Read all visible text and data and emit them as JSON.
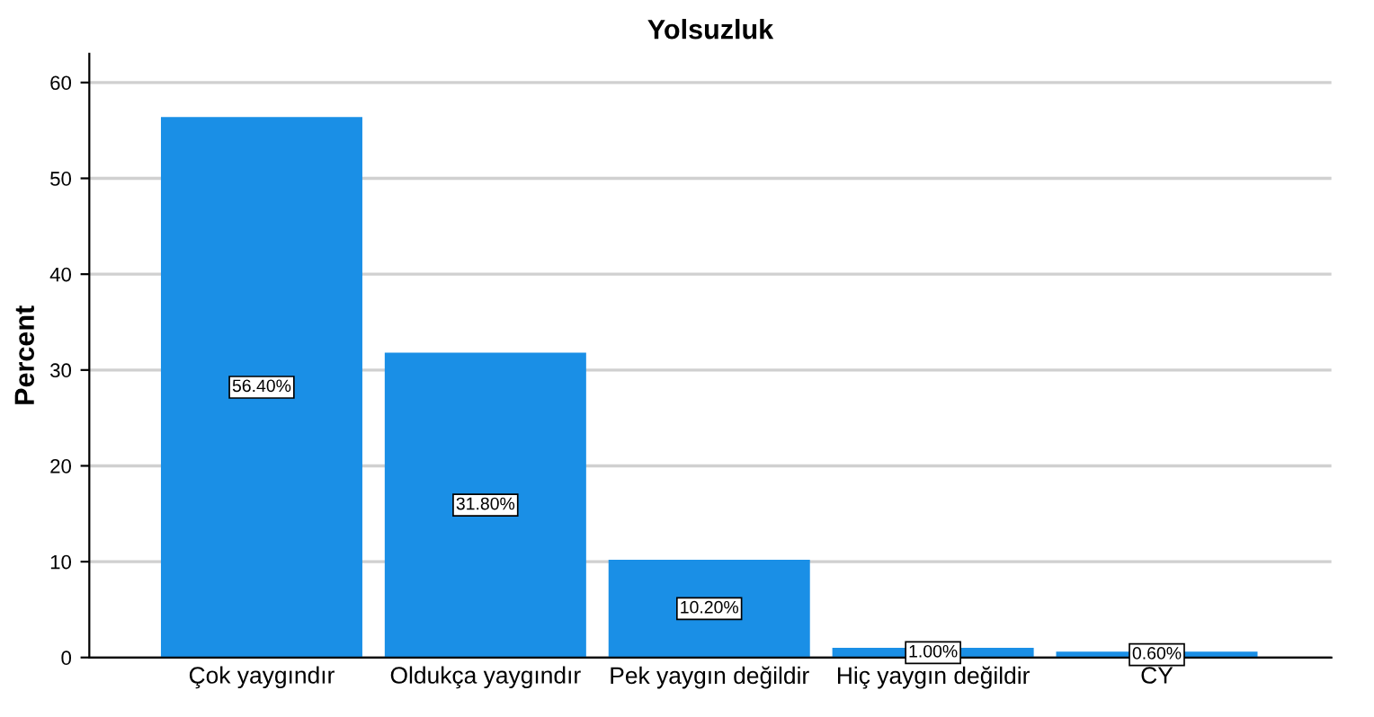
{
  "chart_data": {
    "type": "bar",
    "title": "Yolsuzluk",
    "ylabel": "Percent",
    "categories": [
      "Çok yaygındır",
      "Oldukça yaygındır",
      "Pek yaygın değildir",
      "Hiç yaygın değildir",
      "CY"
    ],
    "values": [
      56.4,
      31.8,
      10.2,
      1.0,
      0.6
    ],
    "value_labels": [
      "56.40%",
      "31.80%",
      "10.20%",
      "1.00%",
      "0.60%"
    ],
    "color": "#1a8fe6",
    "ylim": [
      0,
      63
    ],
    "yticks": [
      0,
      10,
      20,
      30,
      40,
      50,
      60
    ],
    "grid": "y"
  }
}
